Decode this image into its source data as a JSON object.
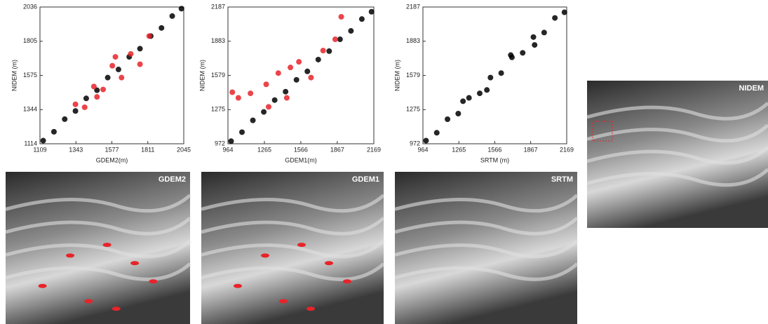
{
  "chart_data": [
    {
      "type": "scatter",
      "x_label": "GDEM2(m)",
      "y_label": "NIDEM (m)",
      "xlim": [
        1109,
        2045
      ],
      "ylim": [
        1114,
        2036
      ],
      "xticks": [
        1109,
        1343,
        1577,
        1811,
        2045
      ],
      "yticks": [
        1114,
        1344,
        1575,
        1805,
        2036
      ],
      "series": [
        {
          "color": "#000000",
          "x": [
            1130,
            1200,
            1270,
            1340,
            1410,
            1480,
            1550,
            1620,
            1690,
            1760,
            1830,
            1900,
            1970,
            2030
          ],
          "values": [
            1135,
            1195,
            1280,
            1335,
            1420,
            1475,
            1560,
            1615,
            1700,
            1755,
            1840,
            1895,
            1975,
            2025
          ]
        },
        {
          "color": "#e8232a",
          "x": [
            1340,
            1400,
            1460,
            1520,
            1580,
            1640,
            1700,
            1760,
            1820,
            1480,
            1600
          ],
          "values": [
            1380,
            1360,
            1500,
            1480,
            1640,
            1560,
            1720,
            1650,
            1840,
            1430,
            1700
          ]
        }
      ]
    },
    {
      "type": "scatter",
      "x_label": "GDEM1(m)",
      "y_label": "NIDEM (m)",
      "xlim": [
        964,
        2169
      ],
      "ylim": [
        972,
        2187
      ],
      "xticks": [
        964,
        1265,
        1566,
        1867,
        2169
      ],
      "yticks": [
        972,
        1275,
        1579,
        1883,
        2187
      ],
      "series": [
        {
          "color": "#000000",
          "x": [
            990,
            1080,
            1170,
            1260,
            1350,
            1440,
            1530,
            1620,
            1710,
            1800,
            1890,
            1980,
            2070,
            2150
          ],
          "values": [
            995,
            1075,
            1180,
            1255,
            1360,
            1435,
            1540,
            1615,
            1720,
            1795,
            1900,
            1975,
            2080,
            2145
          ]
        },
        {
          "color": "#e8232a",
          "x": [
            1000,
            1050,
            1150,
            1280,
            1380,
            1450,
            1550,
            1650,
            1750,
            1850,
            1900,
            1300,
            1480
          ],
          "values": [
            1430,
            1380,
            1420,
            1500,
            1600,
            1380,
            1700,
            1560,
            1800,
            1900,
            2100,
            1300,
            1650
          ]
        }
      ]
    },
    {
      "type": "scatter",
      "x_label": "SRTM (m)",
      "y_label": "NIDEM (m)",
      "xlim": [
        964,
        2169
      ],
      "ylim": [
        972,
        2187
      ],
      "xticks": [
        964,
        1265,
        1566,
        1867,
        2169
      ],
      "yticks": [
        972,
        1275,
        1579,
        1883,
        2187
      ],
      "series": [
        {
          "color": "#000000",
          "x": [
            990,
            1080,
            1170,
            1260,
            1350,
            1440,
            1530,
            1620,
            1710,
            1800,
            1890,
            1980,
            2070,
            2150,
            1300,
            1500,
            1700,
            1900
          ],
          "values": [
            1000,
            1070,
            1190,
            1240,
            1380,
            1420,
            1560,
            1600,
            1740,
            1780,
            1920,
            1960,
            2090,
            2140,
            1350,
            1450,
            1760,
            1850
          ]
        }
      ]
    }
  ],
  "images": [
    {
      "label": "GDEM2"
    },
    {
      "label": "GDEM1"
    },
    {
      "label": "SRTM"
    },
    {
      "label": "NIDEM"
    }
  ]
}
